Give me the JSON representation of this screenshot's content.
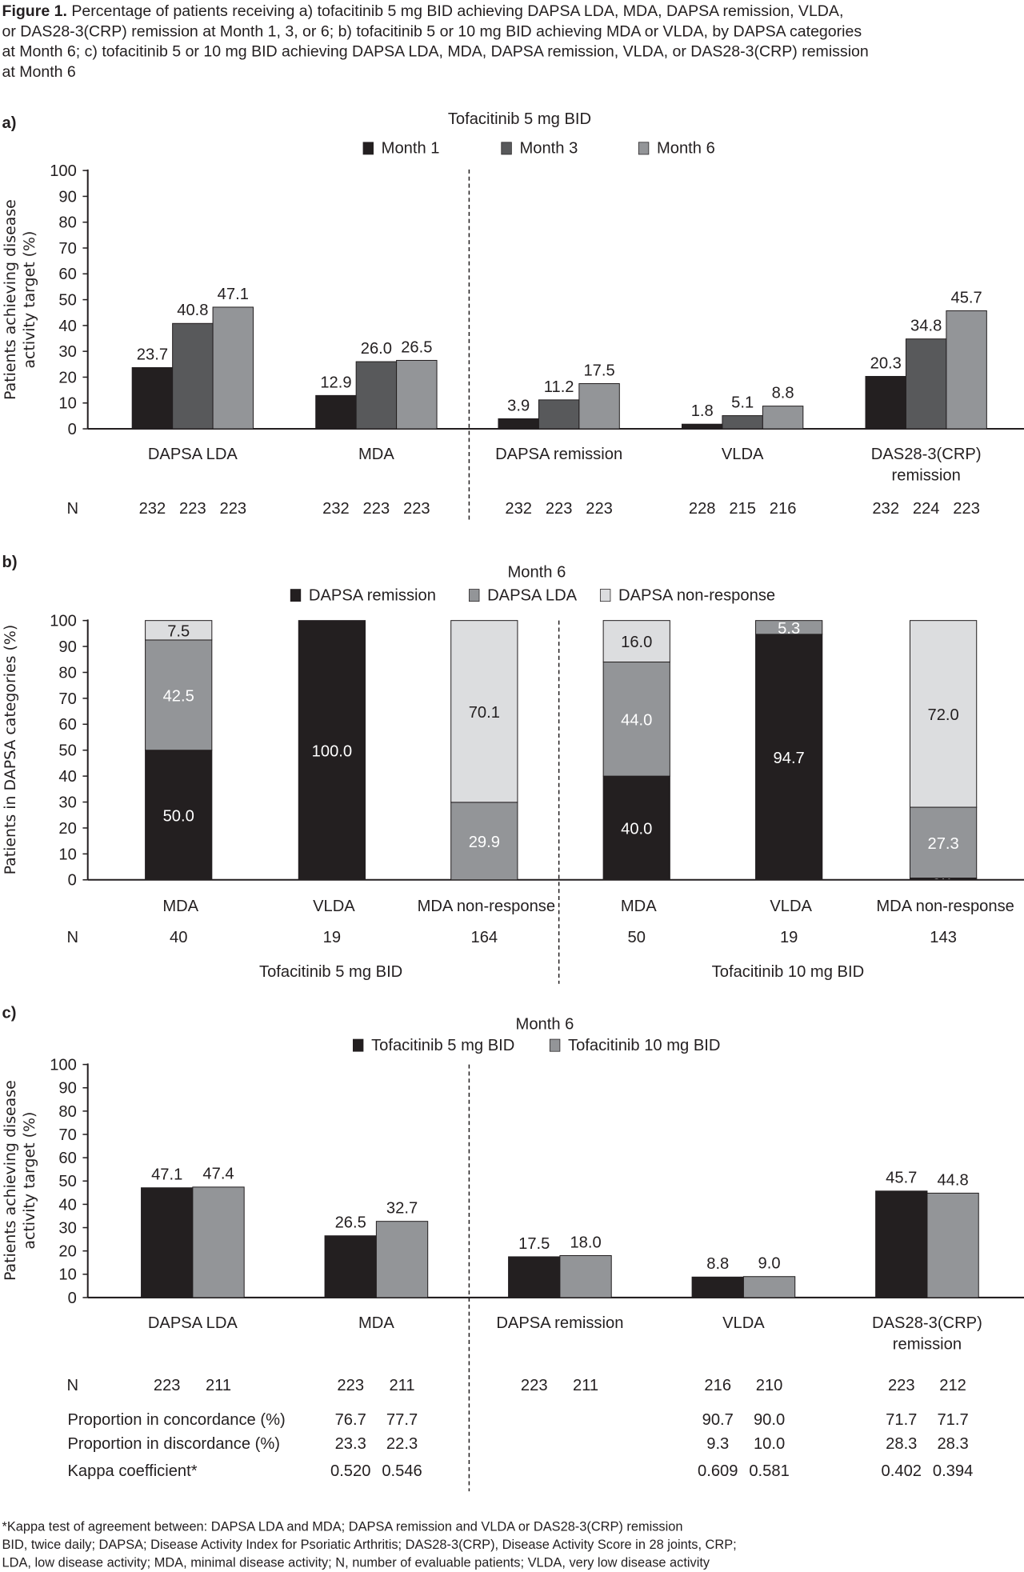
{
  "figure": {
    "caption_bold": "Figure 1.",
    "caption_lines": [
      "Percentage of patients receiving a) tofacitinib 5 mg BID achieving DAPSA LDA, MDA, DAPSA remission, VLDA,",
      "or DAS28-3(CRP) remission at Month 1, 3, or 6; b) tofacitinib 5 or 10 mg BID achieving MDA or VLDA, by DAPSA categories",
      "at Month 6; c) tofacitinib 5 or 10 mg BID achieving DAPSA LDA, MDA, DAPSA remission, VLDA, or DAS28-3(CRP) remission",
      "at Month 6"
    ],
    "footnotes": [
      "*Kappa test of agreement between: DAPSA LDA and MDA; DAPSA remission and VLDA or DAS28-3(CRP) remission",
      "BID, twice daily; DAPSA; Disease Activity Index for Psoriatic Arthritis; DAS28-3(CRP), Disease Activity Score in 28 joints, CRP;",
      "LDA, low disease activity; MDA, minimal disease activity; N, number of evaluable patients; VLDA, very low disease activity"
    ]
  },
  "chart_data": [
    {
      "panel": "a)",
      "type": "bar",
      "title": "Tofacitinib 5 mg BID",
      "ylabel_lines": [
        "Patients achieving disease",
        "activity target (%)"
      ],
      "ylim": [
        0,
        100
      ],
      "yticks": [
        0,
        10,
        20,
        30,
        40,
        50,
        60,
        70,
        80,
        90,
        100
      ],
      "legend": "top",
      "grid": false,
      "categories": [
        [
          "DAPSA LDA"
        ],
        [
          "MDA"
        ],
        [
          "DAPSA remission"
        ],
        [
          "VLDA"
        ],
        [
          "DAS28-3(CRP)",
          "remission"
        ]
      ],
      "series": [
        {
          "name": "Month 1",
          "color": "#231f20",
          "values": [
            23.7,
            12.9,
            3.9,
            1.8,
            20.3
          ]
        },
        {
          "name": "Month 3",
          "color": "#58595b",
          "values": [
            40.8,
            26.0,
            11.2,
            5.1,
            34.8
          ]
        },
        {
          "name": "Month 6",
          "color": "#939598",
          "values": [
            47.1,
            26.5,
            17.5,
            8.8,
            45.7
          ]
        }
      ],
      "n_label": "N",
      "n": [
        [
          232,
          223,
          223
        ],
        [
          232,
          223,
          223
        ],
        [
          232,
          223,
          223
        ],
        [
          228,
          215,
          216
        ],
        [
          232,
          224,
          223
        ]
      ]
    },
    {
      "panel": "b)",
      "type": "bar",
      "stacked": true,
      "title": "Month 6",
      "ylabel_lines": [
        "Patients in DAPSA categories (%)"
      ],
      "ylim": [
        0,
        100
      ],
      "yticks": [
        0,
        10,
        20,
        30,
        40,
        50,
        60,
        70,
        80,
        90,
        100
      ],
      "legend": "top",
      "grid": false,
      "categories": [
        "MDA",
        "VLDA",
        "MDA non-response",
        "MDA",
        "VLDA",
        "MDA non-response"
      ],
      "groups": [
        "Tofacitinib 5 mg BID",
        "Tofacitinib 10 mg BID"
      ],
      "series": [
        {
          "name": "DAPSA remission",
          "color": "#231f20",
          "label_color": "#ffffff",
          "values": [
            50.0,
            100.0,
            0,
            40.0,
            94.7,
            0.7
          ]
        },
        {
          "name": "DAPSA LDA",
          "color": "#939598",
          "label_color": "#ffffff",
          "values": [
            42.5,
            0,
            29.9,
            44.0,
            5.3,
            27.3
          ]
        },
        {
          "name": "DAPSA non-response",
          "color": "#dcdddf",
          "label_color": "#231f20",
          "values": [
            7.5,
            0,
            70.1,
            16.0,
            0,
            72.0
          ]
        }
      ],
      "n_label": "N",
      "n": [
        40,
        19,
        164,
        50,
        19,
        143
      ]
    },
    {
      "panel": "c)",
      "type": "bar",
      "title": "Month 6",
      "ylabel_lines": [
        "Patients achieving disease",
        "activity target (%)"
      ],
      "ylim": [
        0,
        100
      ],
      "yticks": [
        0,
        10,
        20,
        30,
        40,
        50,
        60,
        70,
        80,
        90,
        100
      ],
      "legend": "top",
      "grid": false,
      "categories": [
        [
          "DAPSA LDA"
        ],
        [
          "MDA"
        ],
        [
          "DAPSA remission"
        ],
        [
          "VLDA"
        ],
        [
          "DAS28-3(CRP)",
          "remission"
        ]
      ],
      "series": [
        {
          "name": "Tofacitinib 5 mg BID",
          "color": "#231f20",
          "values": [
            47.1,
            26.5,
            17.5,
            8.8,
            45.7
          ]
        },
        {
          "name": "Tofacitinib 10 mg BID",
          "color": "#939598",
          "values": [
            47.4,
            32.7,
            18.0,
            9.0,
            44.8
          ]
        }
      ],
      "n_label": "N",
      "n": [
        [
          223,
          211
        ],
        [
          223,
          211
        ],
        [
          223,
          211
        ],
        [
          216,
          210
        ],
        [
          223,
          212
        ]
      ],
      "table": [
        {
          "label": "Proportion in concordance (%)",
          "values": [
            null,
            [
              "76.7",
              "77.7"
            ],
            null,
            [
              "90.7",
              "90.0"
            ],
            [
              "71.7",
              "71.7"
            ]
          ]
        },
        {
          "label": "Proportion in discordance (%)",
          "values": [
            null,
            [
              "23.3",
              "22.3"
            ],
            null,
            [
              "9.3",
              "10.0"
            ],
            [
              "28.3",
              "28.3"
            ]
          ]
        },
        {
          "label": "Kappa coefficient*",
          "values": [
            null,
            [
              "0.520",
              "0.546"
            ],
            null,
            [
              "0.609",
              "0.581"
            ],
            [
              "0.402",
              "0.394"
            ]
          ]
        }
      ]
    }
  ]
}
